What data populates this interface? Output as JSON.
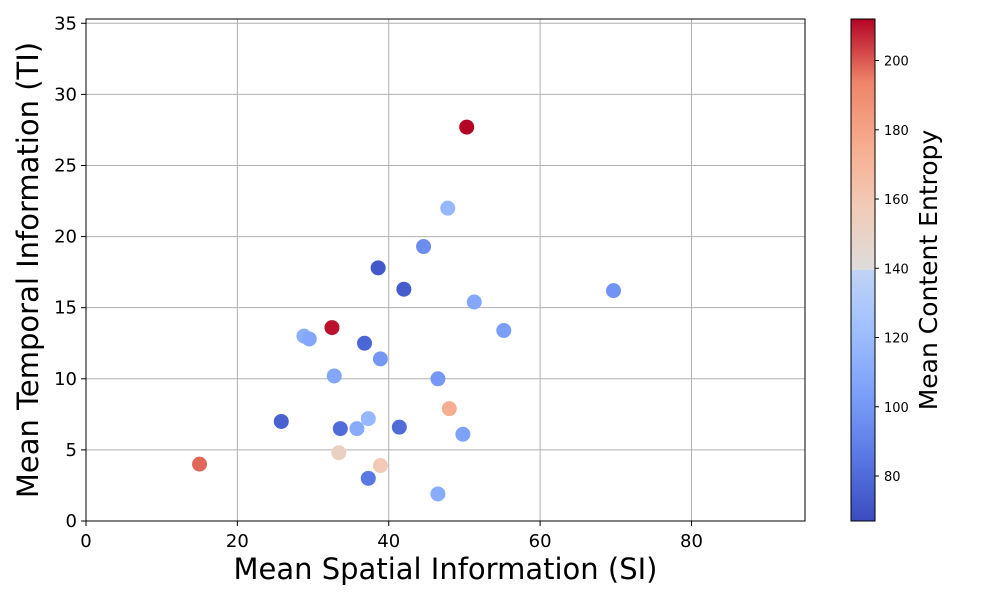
{
  "chart_data": {
    "type": "scatter",
    "title": "",
    "xlabel": "Mean Spatial Information (SI)",
    "ylabel": "Mean Temporal Information (TI)",
    "xlim": [
      0,
      95
    ],
    "ylim": [
      0,
      35.3
    ],
    "xticks": [
      0,
      20,
      40,
      60,
      80
    ],
    "yticks": [
      0,
      5,
      10,
      15,
      20,
      25,
      30,
      35
    ],
    "grid": true,
    "colormap": "coolwarm",
    "colorbar": {
      "label": "Mean Content Entropy",
      "range": [
        67,
        212
      ],
      "ticks": [
        80,
        100,
        120,
        140,
        160,
        180,
        200
      ]
    },
    "points": [
      {
        "x": 50.3,
        "y": 27.7,
        "c": 212
      },
      {
        "x": 47.8,
        "y": 22.0,
        "c": 118
      },
      {
        "x": 44.6,
        "y": 19.3,
        "c": 95
      },
      {
        "x": 38.6,
        "y": 17.8,
        "c": 72
      },
      {
        "x": 42.0,
        "y": 16.3,
        "c": 74
      },
      {
        "x": 69.7,
        "y": 16.2,
        "c": 98
      },
      {
        "x": 51.3,
        "y": 15.4,
        "c": 108
      },
      {
        "x": 32.5,
        "y": 13.6,
        "c": 210
      },
      {
        "x": 55.2,
        "y": 13.4,
        "c": 103
      },
      {
        "x": 28.8,
        "y": 13.0,
        "c": 112
      },
      {
        "x": 29.5,
        "y": 12.8,
        "c": 108
      },
      {
        "x": 36.8,
        "y": 12.5,
        "c": 78
      },
      {
        "x": 38.9,
        "y": 11.4,
        "c": 100
      },
      {
        "x": 32.8,
        "y": 10.2,
        "c": 108
      },
      {
        "x": 46.5,
        "y": 10.0,
        "c": 100
      },
      {
        "x": 48.0,
        "y": 7.9,
        "c": 175
      },
      {
        "x": 37.3,
        "y": 7.2,
        "c": 118
      },
      {
        "x": 25.8,
        "y": 7.0,
        "c": 76
      },
      {
        "x": 41.4,
        "y": 6.6,
        "c": 80
      },
      {
        "x": 33.6,
        "y": 6.5,
        "c": 80
      },
      {
        "x": 35.8,
        "y": 6.5,
        "c": 110
      },
      {
        "x": 49.8,
        "y": 6.1,
        "c": 105
      },
      {
        "x": 33.4,
        "y": 4.8,
        "c": 152
      },
      {
        "x": 15.0,
        "y": 4.0,
        "c": 198
      },
      {
        "x": 38.9,
        "y": 3.9,
        "c": 158
      },
      {
        "x": 37.3,
        "y": 3.0,
        "c": 86
      },
      {
        "x": 46.5,
        "y": 1.9,
        "c": 110
      }
    ]
  }
}
